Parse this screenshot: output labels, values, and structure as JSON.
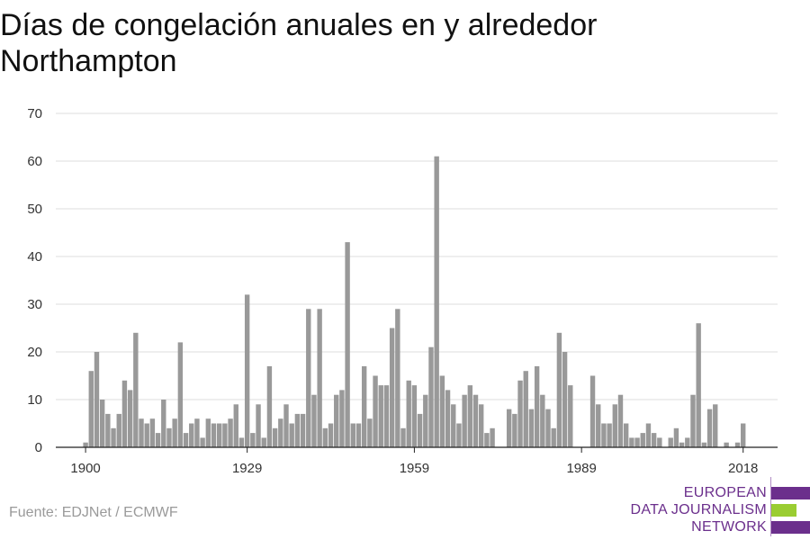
{
  "title": "Días de congelación anuales en y alrededor Northampton",
  "source": "Fuente: EDJNet / ECMWF",
  "logo": {
    "line1": "EUROPEAN",
    "line2": "DATA JOURNALISM",
    "line3": "NETWORK",
    "colors": [
      "#6b2f8c",
      "#9acd32",
      "#6b2f8c"
    ]
  },
  "colors": {
    "bar": "#999999",
    "grid": "#dddddd",
    "axis": "#222222"
  },
  "chart_data": {
    "type": "bar",
    "x_start": 1900,
    "x_end": 2019,
    "x_ticks": [
      1900,
      1929,
      1959,
      1989,
      2018
    ],
    "ylim": [
      0,
      70
    ],
    "y_ticks": [
      0,
      10,
      20,
      30,
      40,
      50,
      60,
      70
    ],
    "grid": true,
    "title": "Días de congelación anuales en y alrededor Northampton",
    "values": [
      1,
      16,
      20,
      10,
      7,
      4,
      7,
      14,
      12,
      24,
      6,
      5,
      6,
      3,
      10,
      4,
      6,
      22,
      3,
      5,
      6,
      2,
      6,
      5,
      5,
      5,
      6,
      9,
      2,
      32,
      3,
      9,
      2,
      17,
      4,
      6,
      9,
      5,
      7,
      7,
      29,
      11,
      29,
      4,
      5,
      11,
      12,
      43,
      5,
      5,
      17,
      6,
      15,
      13,
      13,
      25,
      29,
      4,
      14,
      13,
      7,
      11,
      21,
      61,
      15,
      12,
      9,
      5,
      11,
      13,
      11,
      9,
      3,
      4,
      0,
      0,
      8,
      7,
      14,
      16,
      8,
      17,
      11,
      8,
      4,
      24,
      20,
      13,
      0,
      0,
      0,
      15,
      9,
      5,
      5,
      9,
      11,
      5,
      2,
      2,
      3,
      5,
      3,
      2,
      0,
      2,
      4,
      1,
      2,
      11,
      26,
      1,
      8,
      9,
      0,
      1,
      0,
      1,
      5,
      0
    ]
  }
}
